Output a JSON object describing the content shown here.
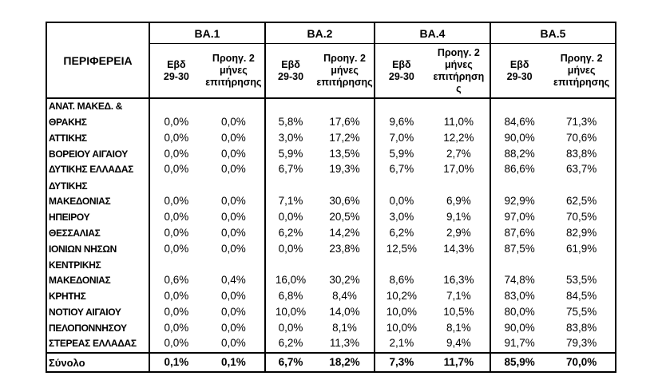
{
  "table": {
    "region_header": "ΠΕΡΙΦΕΡΕΙΑ",
    "groups": [
      {
        "label": "BA.1",
        "sub_week": "Εβδ\n29-30",
        "sub_prev": "Προηγ. 2\nμήνες\nεπιτήρησης"
      },
      {
        "label": "BA.2",
        "sub_week": "Εβδ\n29-30",
        "sub_prev": "Προηγ. 2\nμήνες\nεπιτήρησης"
      },
      {
        "label": "BA.4",
        "sub_week": "Εβδ\n29-30",
        "sub_prev": "Προηγ. 2\nμήνες\nεπιτήρηση\nς"
      },
      {
        "label": "BA.5",
        "sub_week": "Εβδ\n29-30",
        "sub_prev": "Προηγ. 2\nμήνες\nεπιτήρησης"
      }
    ],
    "rows": [
      {
        "name": "ΑΝΑΤ. ΜΑΚΕΔ. &\nΘΡΑΚΗΣ",
        "lines": 2,
        "values": [
          "0,0%",
          "0,0%",
          "5,8%",
          "17,6%",
          "9,6%",
          "11,0%",
          "84,6%",
          "71,3%"
        ]
      },
      {
        "name": "ΑΤΤΙΚΗΣ",
        "lines": 1,
        "values": [
          "0,0%",
          "0,0%",
          "3,0%",
          "17,2%",
          "7,0%",
          "12,2%",
          "90,0%",
          "70,6%"
        ]
      },
      {
        "name": "ΒΟΡΕΙΟΥ ΑΙΓΑΙΟΥ",
        "lines": 1,
        "values": [
          "0,0%",
          "0,0%",
          "5,9%",
          "13,5%",
          "5,9%",
          "2,7%",
          "88,2%",
          "83,8%"
        ]
      },
      {
        "name": "ΔΥΤΙΚΗΣ ΕΛΛΑΔΑΣ",
        "lines": 1,
        "values": [
          "0,0%",
          "0,0%",
          "6,7%",
          "19,3%",
          "6,7%",
          "17,0%",
          "86,6%",
          "63,7%"
        ]
      },
      {
        "name": "ΔΥΤΙΚΗΣ\nΜΑΚΕΔΟΝΙΑΣ",
        "lines": 2,
        "values": [
          "0,0%",
          "0,0%",
          "7,1%",
          "30,6%",
          "0,0%",
          "6,9%",
          "92,9%",
          "62,5%"
        ]
      },
      {
        "name": "ΗΠΕΙΡΟΥ",
        "lines": 1,
        "values": [
          "0,0%",
          "0,0%",
          "0,0%",
          "20,5%",
          "3,0%",
          "9,1%",
          "97,0%",
          "70,5%"
        ]
      },
      {
        "name": "ΘΕΣΣΑΛΙΑΣ",
        "lines": 1,
        "values": [
          "0,0%",
          "0,0%",
          "6,2%",
          "14,2%",
          "6,2%",
          "2,9%",
          "87,6%",
          "82,9%"
        ]
      },
      {
        "name": "ΙΟΝΙΩΝ ΝΗΣΩΝ",
        "lines": 1,
        "values": [
          "0,0%",
          "0,0%",
          "0,0%",
          "23,8%",
          "12,5%",
          "14,3%",
          "87,5%",
          "61,9%"
        ]
      },
      {
        "name": "ΚΕΝΤΡΙΚΗΣ\nΜΑΚΕΔΟΝΙΑΣ",
        "lines": 2,
        "values": [
          "0,6%",
          "0,4%",
          "16,0%",
          "30,2%",
          "8,6%",
          "16,3%",
          "74,8%",
          "53,5%"
        ]
      },
      {
        "name": "ΚΡΗΤΗΣ",
        "lines": 1,
        "values": [
          "0,0%",
          "0,0%",
          "6,8%",
          "8,4%",
          "10,2%",
          "7,1%",
          "83,0%",
          "84,5%"
        ]
      },
      {
        "name": "ΝΟΤΙΟΥ ΑΙΓΑΙΟΥ",
        "lines": 1,
        "values": [
          "0,0%",
          "0,0%",
          "10,0%",
          "14,0%",
          "10,0%",
          "10,5%",
          "80,0%",
          "75,5%"
        ]
      },
      {
        "name": "ΠΕΛΟΠΟΝΝΗΣΟΥ",
        "lines": 1,
        "values": [
          "0,0%",
          "0,0%",
          "0,0%",
          "8,1%",
          "10,0%",
          "8,1%",
          "90,0%",
          "83,8%"
        ]
      },
      {
        "name": "ΣΤΕΡΕΑΣ ΕΛΛΑΔΑΣ",
        "lines": 1,
        "values": [
          "0,0%",
          "0,0%",
          "6,2%",
          "11,3%",
          "2,1%",
          "9,4%",
          "91,7%",
          "79,3%"
        ]
      }
    ],
    "total": {
      "name": "Σύνολο",
      "values": [
        "0,1%",
        "0,1%",
        "6,7%",
        "18,2%",
        "7,3%",
        "11,7%",
        "85,9%",
        "70,0%"
      ]
    }
  },
  "chart_data": {
    "type": "table",
    "title": "",
    "units": "percent",
    "columns": [
      "ΠΕΡΙΦΕΡΕΙΑ",
      "BA.1 Εβδ 29-30",
      "BA.1 Προηγ. 2 μήνες επιτήρησης",
      "BA.2 Εβδ 29-30",
      "BA.2 Προηγ. 2 μήνες επιτήρησης",
      "BA.4 Εβδ 29-30",
      "BA.4 Προηγ. 2 μήνες επιτήρησης",
      "BA.5 Εβδ 29-30",
      "BA.5 Προηγ. 2 μήνες επιτήρησης"
    ],
    "rows": [
      [
        "ΑΝΑΤ. ΜΑΚΕΔ. & ΘΡΑΚΗΣ",
        0.0,
        0.0,
        5.8,
        17.6,
        9.6,
        11.0,
        84.6,
        71.3
      ],
      [
        "ΑΤΤΙΚΗΣ",
        0.0,
        0.0,
        3.0,
        17.2,
        7.0,
        12.2,
        90.0,
        70.6
      ],
      [
        "ΒΟΡΕΙΟΥ ΑΙΓΑΙΟΥ",
        0.0,
        0.0,
        5.9,
        13.5,
        5.9,
        2.7,
        88.2,
        83.8
      ],
      [
        "ΔΥΤΙΚΗΣ ΕΛΛΑΔΑΣ",
        0.0,
        0.0,
        6.7,
        19.3,
        6.7,
        17.0,
        86.6,
        63.7
      ],
      [
        "ΔΥΤΙΚΗΣ ΜΑΚΕΔΟΝΙΑΣ",
        0.0,
        0.0,
        7.1,
        30.6,
        0.0,
        6.9,
        92.9,
        62.5
      ],
      [
        "ΗΠΕΙΡΟΥ",
        0.0,
        0.0,
        0.0,
        20.5,
        3.0,
        9.1,
        97.0,
        70.5
      ],
      [
        "ΘΕΣΣΑΛΙΑΣ",
        0.0,
        0.0,
        6.2,
        14.2,
        6.2,
        2.9,
        87.6,
        82.9
      ],
      [
        "ΙΟΝΙΩΝ ΝΗΣΩΝ",
        0.0,
        0.0,
        0.0,
        23.8,
        12.5,
        14.3,
        87.5,
        61.9
      ],
      [
        "ΚΕΝΤΡΙΚΗΣ ΜΑΚΕΔΟΝΙΑΣ",
        0.6,
        0.4,
        16.0,
        30.2,
        8.6,
        16.3,
        74.8,
        53.5
      ],
      [
        "ΚΡΗΤΗΣ",
        0.0,
        0.0,
        6.8,
        8.4,
        10.2,
        7.1,
        83.0,
        84.5
      ],
      [
        "ΝΟΤΙΟΥ ΑΙΓΑΙΟΥ",
        0.0,
        0.0,
        10.0,
        14.0,
        10.0,
        10.5,
        80.0,
        75.5
      ],
      [
        "ΠΕΛΟΠΟΝΝΗΣΟΥ",
        0.0,
        0.0,
        0.0,
        8.1,
        10.0,
        8.1,
        90.0,
        83.8
      ],
      [
        "ΣΤΕΡΕΑΣ ΕΛΛΑΔΑΣ",
        0.0,
        0.0,
        6.2,
        11.3,
        2.1,
        9.4,
        91.7,
        79.3
      ],
      [
        "Σύνολο",
        0.1,
        0.1,
        6.7,
        18.2,
        7.3,
        11.7,
        85.9,
        70.0
      ]
    ]
  }
}
